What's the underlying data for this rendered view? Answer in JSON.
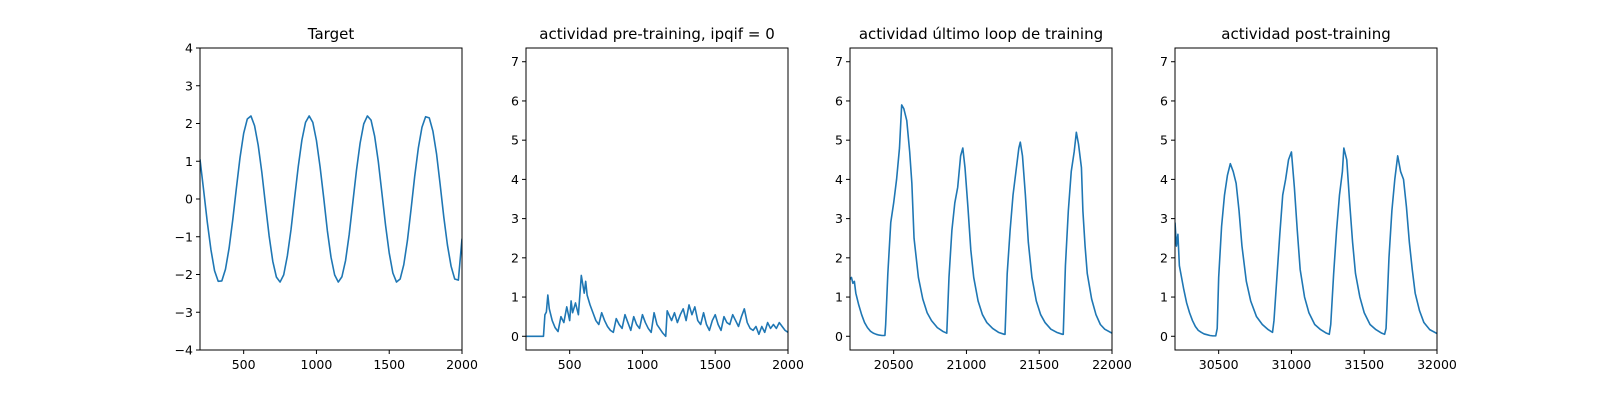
{
  "chart_data": [
    {
      "type": "line",
      "title": "Target",
      "xlim": [
        200,
        2000
      ],
      "ylim": [
        -4,
        4
      ],
      "xticks": [
        500,
        1000,
        1500,
        2000
      ],
      "xtick_labels": [
        "500",
        "1000",
        "1500",
        "2000"
      ],
      "yticks": [
        -4,
        -3,
        -2,
        -1,
        0,
        1,
        2,
        3,
        4
      ],
      "ytick_labels": [
        "−4",
        "−3",
        "−2",
        "−1",
        "0",
        "1",
        "2",
        "3",
        "4"
      ],
      "color": "#1f77b4",
      "series": [
        {
          "x": [
            200,
            225,
            250,
            275,
            300,
            325,
            350,
            375,
            400,
            425,
            450,
            475,
            500,
            525,
            550,
            575,
            600,
            625,
            650,
            675,
            700,
            725,
            750,
            775,
            800,
            825,
            850,
            875,
            900,
            925,
            950,
            975,
            1000,
            1025,
            1050,
            1075,
            1100,
            1125,
            1150,
            1175,
            1200,
            1225,
            1250,
            1275,
            1300,
            1325,
            1350,
            1375,
            1400,
            1425,
            1450,
            1475,
            1500,
            1525,
            1550,
            1575,
            1600,
            1625,
            1650,
            1675,
            1700,
            1725,
            1750,
            1775,
            1800,
            1825,
            1850,
            1875,
            1900,
            1925,
            1950,
            1975,
            2000
          ],
          "y": [
            1.05,
            0.23,
            -0.61,
            -1.34,
            -1.9,
            -2.18,
            -2.17,
            -1.86,
            -1.3,
            -0.55,
            0.29,
            1.1,
            1.74,
            2.12,
            2.2,
            1.94,
            1.42,
            0.7,
            -0.15,
            -0.98,
            -1.65,
            -2.07,
            -2.2,
            -2.01,
            -1.51,
            -0.82,
            0.03,
            0.86,
            1.56,
            2.03,
            2.2,
            2.03,
            1.55,
            0.85,
            0.03,
            -0.84,
            -1.54,
            -2.01,
            -2.2,
            -2.06,
            -1.63,
            -0.94,
            -0.09,
            0.76,
            1.48,
            1.99,
            2.2,
            2.09,
            1.66,
            0.99,
            0.15,
            -0.7,
            -1.43,
            -1.96,
            -2.2,
            -2.12,
            -1.74,
            -1.1,
            -0.27,
            0.6,
            1.35,
            1.9,
            2.18,
            2.15,
            1.8,
            1.2,
            0.38,
            -0.48,
            -1.22,
            -1.78,
            -2.12,
            -2.15,
            -1.05
          ]
        }
      ]
    },
    {
      "type": "line",
      "title": "actividad pre-training, ipqif = 0",
      "xlim": [
        200,
        2000
      ],
      "ylim": [
        -0.35,
        7.35
      ],
      "xticks": [
        500,
        1000,
        1500,
        2000
      ],
      "xtick_labels": [
        "500",
        "1000",
        "1500",
        "2000"
      ],
      "yticks": [
        0,
        1,
        2,
        3,
        4,
        5,
        6,
        7
      ],
      "ytick_labels": [
        "0",
        "1",
        "2",
        "3",
        "4",
        "5",
        "6",
        "7"
      ],
      "color": "#1f77b4",
      "series": [
        {
          "x": [
            200,
            320,
            330,
            340,
            350,
            360,
            380,
            400,
            420,
            440,
            460,
            480,
            500,
            510,
            520,
            540,
            560,
            580,
            600,
            610,
            620,
            640,
            660,
            680,
            700,
            720,
            740,
            760,
            780,
            800,
            820,
            840,
            860,
            880,
            900,
            920,
            940,
            960,
            980,
            1000,
            1020,
            1040,
            1060,
            1080,
            1100,
            1140,
            1160,
            1170,
            1200,
            1220,
            1240,
            1260,
            1280,
            1300,
            1320,
            1340,
            1360,
            1380,
            1400,
            1420,
            1440,
            1460,
            1480,
            1500,
            1520,
            1540,
            1560,
            1580,
            1600,
            1620,
            1640,
            1660,
            1680,
            1700,
            1720,
            1740,
            1760,
            1780,
            1800,
            1820,
            1840,
            1860,
            1880,
            1900,
            1920,
            1940,
            1960,
            1980,
            2000
          ],
          "y": [
            0,
            0,
            0.55,
            0.62,
            1.05,
            0.7,
            0.4,
            0.22,
            0.12,
            0.5,
            0.35,
            0.75,
            0.4,
            0.9,
            0.6,
            0.85,
            0.55,
            1.55,
            1.1,
            1.4,
            1.05,
            0.8,
            0.6,
            0.4,
            0.3,
            0.6,
            0.4,
            0.25,
            0.15,
            0.1,
            0.45,
            0.3,
            0.2,
            0.55,
            0.35,
            0.15,
            0.5,
            0.3,
            0.2,
            0.55,
            0.35,
            0.2,
            0.1,
            0.6,
            0.3,
            0.08,
            0,
            0.65,
            0.4,
            0.6,
            0.35,
            0.55,
            0.7,
            0.4,
            0.8,
            0.55,
            0.75,
            0.4,
            0.3,
            0.6,
            0.3,
            0.15,
            0.4,
            0.55,
            0.3,
            0.15,
            0.5,
            0.35,
            0.3,
            0.55,
            0.4,
            0.25,
            0.5,
            0.7,
            0.35,
            0.2,
            0.15,
            0.25,
            0.05,
            0.25,
            0.1,
            0.35,
            0.2,
            0.3,
            0.2,
            0.35,
            0.25,
            0.15,
            0.1
          ]
        }
      ]
    },
    {
      "type": "line",
      "title": "actividad último loop de training",
      "xlim": [
        20200,
        22000
      ],
      "ylim": [
        -0.35,
        7.35
      ],
      "xticks": [
        20500,
        21000,
        21500,
        22000
      ],
      "xtick_labels": [
        "20500",
        "21000",
        "21500",
        "22000"
      ],
      "yticks": [
        0,
        1,
        2,
        3,
        4,
        5,
        6,
        7
      ],
      "ytick_labels": [
        "0",
        "1",
        "2",
        "3",
        "4",
        "5",
        "6",
        "7"
      ],
      "color": "#1f77b4",
      "series": [
        {
          "x": [
            20200,
            20210,
            20220,
            20230,
            20240,
            20260,
            20280,
            20300,
            20320,
            20340,
            20360,
            20380,
            20400,
            20420,
            20440,
            20445,
            20460,
            20480,
            20500,
            20520,
            20540,
            20555,
            20570,
            20590,
            20610,
            20625,
            20640,
            20670,
            20700,
            20730,
            20760,
            20800,
            20840,
            20865,
            20880,
            20900,
            20920,
            20940,
            20960,
            20975,
            20990,
            21010,
            21030,
            21050,
            21080,
            21110,
            21140,
            21180,
            21220,
            21260,
            21265,
            21280,
            21300,
            21320,
            21340,
            21360,
            21370,
            21385,
            21405,
            21425,
            21450,
            21480,
            21510,
            21540,
            21580,
            21620,
            21660,
            21665,
            21680,
            21700,
            21720,
            21740,
            21755,
            21770,
            21790,
            21800,
            21815,
            21830,
            21860,
            21890,
            21920,
            21950,
            22000
          ],
          "y": [
            1.45,
            1.5,
            1.35,
            1.4,
            1.1,
            0.8,
            0.55,
            0.35,
            0.22,
            0.13,
            0.08,
            0.05,
            0.03,
            0.02,
            0.02,
            0.3,
            1.6,
            2.9,
            3.4,
            4.0,
            4.8,
            5.9,
            5.8,
            5.5,
            4.7,
            3.9,
            2.5,
            1.5,
            0.95,
            0.6,
            0.4,
            0.22,
            0.12,
            0.08,
            1.5,
            2.7,
            3.4,
            3.8,
            4.6,
            4.8,
            4.3,
            3.3,
            2.2,
            1.5,
            0.9,
            0.55,
            0.35,
            0.2,
            0.1,
            0.05,
            0.05,
            1.6,
            2.7,
            3.6,
            4.2,
            4.8,
            4.95,
            4.6,
            3.6,
            2.4,
            1.5,
            0.9,
            0.55,
            0.35,
            0.18,
            0.1,
            0.05,
            0.05,
            1.8,
            3.2,
            4.2,
            4.7,
            5.2,
            4.9,
            4.3,
            3.2,
            2.3,
            1.6,
            0.95,
            0.55,
            0.3,
            0.18,
            0.08
          ]
        }
      ]
    },
    {
      "type": "line",
      "title": "actividad post-training",
      "xlim": [
        30200,
        32000
      ],
      "ylim": [
        -0.35,
        7.35
      ],
      "xticks": [
        30500,
        31000,
        31500,
        32000
      ],
      "xtick_labels": [
        "30500",
        "31000",
        "31500",
        "32000"
      ],
      "yticks": [
        0,
        1,
        2,
        3,
        4,
        5,
        6,
        7
      ],
      "ytick_labels": [
        "0",
        "1",
        "2",
        "3",
        "4",
        "5",
        "6",
        "7"
      ],
      "color": "#1f77b4",
      "series": [
        {
          "x": [
            30200,
            30210,
            30220,
            30230,
            30240,
            30260,
            30280,
            30300,
            30320,
            30340,
            30360,
            30380,
            30400,
            30420,
            30440,
            30460,
            30480,
            30490,
            30500,
            30520,
            30540,
            30560,
            30580,
            30600,
            30620,
            30640,
            30660,
            30690,
            30720,
            30760,
            30800,
            30840,
            30870,
            30880,
            30900,
            30920,
            30940,
            30960,
            30980,
            31000,
            31020,
            31040,
            31060,
            31090,
            31120,
            31160,
            31200,
            31240,
            31260,
            31270,
            31290,
            31310,
            31330,
            31350,
            31360,
            31380,
            31400,
            31420,
            31440,
            31470,
            31500,
            31540,
            31580,
            31620,
            31640,
            31650,
            31670,
            31690,
            31710,
            31730,
            31750,
            31770,
            31790,
            31810,
            31830,
            31850,
            31880,
            31910,
            31950,
            32000
          ],
          "y": [
            2.9,
            2.3,
            2.6,
            1.8,
            1.6,
            1.2,
            0.85,
            0.6,
            0.4,
            0.25,
            0.15,
            0.1,
            0.06,
            0.04,
            0.02,
            0.01,
            0.01,
            0.2,
            1.5,
            2.8,
            3.6,
            4.1,
            4.4,
            4.2,
            3.9,
            3.2,
            2.3,
            1.4,
            0.9,
            0.5,
            0.3,
            0.17,
            0.1,
            0.4,
            1.5,
            2.6,
            3.6,
            4.0,
            4.5,
            4.7,
            3.8,
            2.7,
            1.7,
            1.0,
            0.6,
            0.3,
            0.17,
            0.08,
            0.05,
            0.3,
            1.6,
            2.7,
            3.6,
            4.2,
            4.8,
            4.5,
            3.4,
            2.4,
            1.6,
            1.0,
            0.6,
            0.3,
            0.17,
            0.08,
            0.05,
            0.2,
            2.0,
            3.2,
            4.0,
            4.6,
            4.2,
            4.0,
            3.3,
            2.4,
            1.7,
            1.1,
            0.65,
            0.35,
            0.17,
            0.07
          ]
        }
      ]
    }
  ]
}
